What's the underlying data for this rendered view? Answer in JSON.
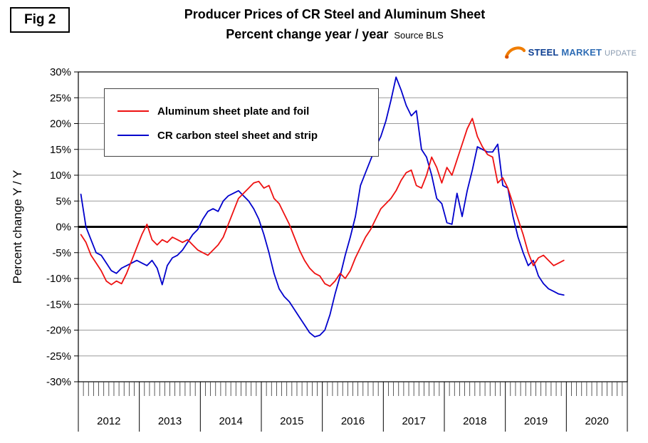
{
  "figure_label": "Fig 2",
  "title": {
    "line1": "Producer Prices of CR Steel and Aluminum Sheet",
    "line2": "Percent change year / year",
    "source": "Source BLS"
  },
  "logo": {
    "steel": "STEEL",
    "market": "MARKET",
    "update": "UPDATE",
    "swoosh_color": "#f07d00"
  },
  "chart_data": {
    "type": "line",
    "title": "Producer Prices of CR Steel and Aluminum Sheet — Percent change year / year",
    "ylabel": "Percent change Y / Y",
    "ylim": [
      -30,
      30
    ],
    "ytick_step": 5,
    "ytick_format": "percent",
    "grid": true,
    "legend_position": "upper-left",
    "x_start": "2012-01",
    "x_end": "2019-12",
    "x_tick_labels": [
      "2012",
      "2013",
      "2014",
      "2015",
      "2016",
      "2017",
      "2018",
      "2019",
      "2020"
    ],
    "months_per_year": 12,
    "zero_line": {
      "color": "#000000",
      "width": 3
    },
    "series": [
      {
        "name": "Aluminum sheet plate and foil",
        "color": "#ee1111",
        "values": [
          -1.5,
          -3.0,
          -5.5,
          -7.0,
          -8.5,
          -10.5,
          -11.2,
          -10.5,
          -11.0,
          -9.0,
          -6.5,
          -4.0,
          -1.5,
          0.5,
          -2.5,
          -3.5,
          -2.5,
          -3.0,
          -2.0,
          -2.5,
          -3.0,
          -2.5,
          -3.5,
          -4.5,
          -5.0,
          -5.5,
          -4.5,
          -3.5,
          -2.0,
          0.5,
          3.0,
          5.5,
          6.5,
          7.5,
          8.5,
          8.8,
          7.5,
          8.0,
          5.5,
          4.5,
          2.5,
          0.5,
          -2.0,
          -4.5,
          -6.5,
          -8.0,
          -9.0,
          -9.5,
          -11.0,
          -11.5,
          -10.5,
          -9.0,
          -10.0,
          -8.5,
          -6.0,
          -4.0,
          -2.0,
          -0.5,
          1.5,
          3.5,
          4.5,
          5.5,
          7.0,
          9.0,
          10.5,
          11.0,
          8.0,
          7.5,
          10.0,
          13.5,
          11.5,
          8.5,
          11.5,
          10.0,
          13.0,
          16.0,
          19.0,
          21.0,
          17.5,
          15.5,
          14.0,
          13.5,
          8.5,
          9.5,
          7.5,
          4.5,
          1.5,
          -1.5,
          -5.0,
          -7.5,
          -6.0,
          -5.5,
          -6.5,
          -7.5,
          -7.0,
          -6.5
        ]
      },
      {
        "name": "CR carbon steel sheet and strip",
        "color": "#0000cc",
        "values": [
          6.3,
          0.0,
          -2.5,
          -5.0,
          -5.5,
          -7.0,
          -8.5,
          -9.0,
          -8.0,
          -7.5,
          -7.0,
          -6.5,
          -7.0,
          -7.5,
          -6.5,
          -8.0,
          -11.2,
          -7.5,
          -6.0,
          -5.5,
          -4.5,
          -3.0,
          -1.5,
          -0.5,
          1.5,
          3.0,
          3.5,
          3.0,
          5.0,
          6.0,
          6.5,
          7.0,
          6.0,
          5.0,
          3.5,
          1.5,
          -1.5,
          -5.0,
          -9.0,
          -12.0,
          -13.5,
          -14.5,
          -16.0,
          -17.5,
          -19.0,
          -20.5,
          -21.3,
          -21.0,
          -20.0,
          -17.0,
          -13.0,
          -9.5,
          -5.5,
          -2.0,
          2.0,
          8.0,
          10.5,
          13.0,
          15.5,
          17.5,
          20.5,
          24.5,
          29.0,
          26.5,
          23.5,
          21.5,
          22.5,
          15.0,
          13.5,
          10.0,
          5.5,
          4.5,
          0.8,
          0.5,
          6.5,
          2.0,
          7.0,
          11.0,
          15.5,
          15.0,
          14.5,
          14.5,
          16.0,
          8.0,
          7.5,
          2.0,
          -2.0,
          -5.0,
          -7.5,
          -6.5,
          -9.5,
          -11.0,
          -12.0,
          -12.5,
          -13.0,
          -13.2
        ]
      }
    ]
  }
}
